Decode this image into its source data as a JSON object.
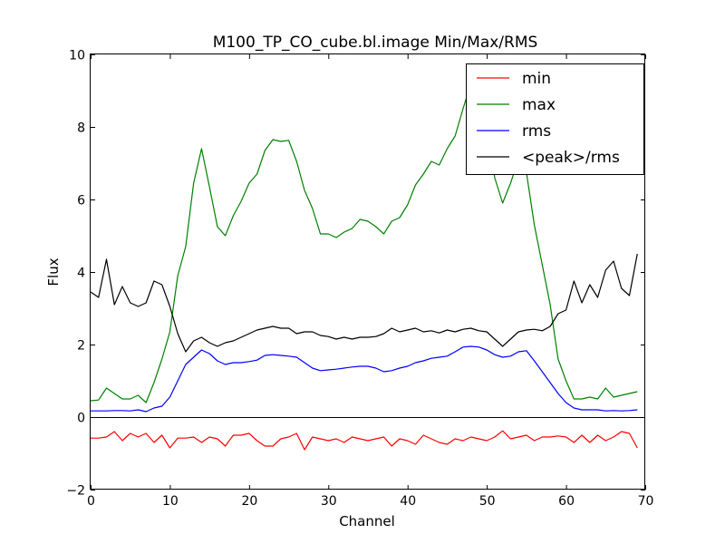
{
  "chart_data": {
    "type": "line",
    "title": "M100_TP_CO_cube.bl.image  Min/Max/RMS",
    "xlabel": "Channel",
    "ylabel": "Flux",
    "xlim": [
      0,
      70
    ],
    "ylim": [
      -2,
      10
    ],
    "xticks": [
      0,
      10,
      20,
      30,
      40,
      50,
      60,
      70
    ],
    "yticks": [
      -2,
      0,
      2,
      4,
      6,
      8,
      10
    ],
    "xtick_labels": [
      "0",
      "10",
      "20",
      "30",
      "40",
      "50",
      "60",
      "70"
    ],
    "ytick_labels": [
      "−2",
      "0",
      "2",
      "4",
      "6",
      "8",
      "10"
    ],
    "grid": false,
    "legend_position": "top-right",
    "zero_line": true,
    "x": [
      0,
      1,
      2,
      3,
      4,
      5,
      6,
      7,
      8,
      9,
      10,
      11,
      12,
      13,
      14,
      15,
      16,
      17,
      18,
      19,
      20,
      21,
      22,
      23,
      24,
      25,
      26,
      27,
      28,
      29,
      30,
      31,
      32,
      33,
      34,
      35,
      36,
      37,
      38,
      39,
      40,
      41,
      42,
      43,
      44,
      45,
      46,
      47,
      48,
      49,
      50,
      51,
      52,
      53,
      54,
      55,
      56,
      57,
      58,
      59,
      60,
      61,
      62,
      63,
      64,
      65,
      66,
      67,
      68,
      69
    ],
    "series": [
      {
        "name": "min",
        "color": "#ff0000",
        "values": [
          -0.58,
          -0.58,
          -0.55,
          -0.4,
          -0.65,
          -0.45,
          -0.55,
          -0.45,
          -0.7,
          -0.5,
          -0.85,
          -0.58,
          -0.58,
          -0.55,
          -0.7,
          -0.55,
          -0.6,
          -0.8,
          -0.5,
          -0.5,
          -0.45,
          -0.65,
          -0.8,
          -0.8,
          -0.6,
          -0.55,
          -0.45,
          -0.9,
          -0.55,
          -0.6,
          -0.65,
          -0.6,
          -0.7,
          -0.55,
          -0.6,
          -0.65,
          -0.6,
          -0.55,
          -0.8,
          -0.6,
          -0.65,
          -0.75,
          -0.5,
          -0.6,
          -0.7,
          -0.75,
          -0.6,
          -0.65,
          -0.55,
          -0.6,
          -0.65,
          -0.55,
          -0.38,
          -0.6,
          -0.55,
          -0.5,
          -0.65,
          -0.55,
          -0.55,
          -0.52,
          -0.55,
          -0.7,
          -0.5,
          -0.7,
          -0.5,
          -0.65,
          -0.55,
          -0.4,
          -0.45,
          -0.85
        ]
      },
      {
        "name": "max",
        "color": "#008000",
        "values": [
          0.45,
          0.47,
          0.8,
          0.65,
          0.5,
          0.5,
          0.6,
          0.4,
          0.95,
          1.6,
          2.35,
          3.9,
          4.7,
          6.45,
          7.4,
          6.35,
          5.25,
          5.0,
          5.55,
          5.95,
          6.45,
          6.7,
          7.35,
          7.65,
          7.6,
          7.63,
          7.05,
          6.25,
          5.75,
          5.05,
          5.05,
          4.95,
          5.1,
          5.2,
          5.45,
          5.4,
          5.25,
          5.05,
          5.4,
          5.5,
          5.85,
          6.4,
          6.7,
          7.05,
          6.95,
          7.4,
          7.75,
          8.5,
          9.2,
          9.0,
          8.0,
          6.6,
          5.9,
          6.45,
          7.1,
          6.75,
          5.3,
          4.2,
          3.1,
          1.6,
          1.0,
          0.5,
          0.5,
          0.55,
          0.5,
          0.8,
          0.55,
          0.6,
          0.65,
          0.7
        ]
      },
      {
        "name": "rms",
        "color": "#0000ff",
        "values": [
          0.17,
          0.17,
          0.17,
          0.18,
          0.18,
          0.17,
          0.2,
          0.15,
          0.25,
          0.3,
          0.55,
          1.0,
          1.45,
          1.65,
          1.85,
          1.75,
          1.55,
          1.45,
          1.5,
          1.5,
          1.53,
          1.57,
          1.7,
          1.72,
          1.7,
          1.68,
          1.65,
          1.5,
          1.35,
          1.28,
          1.3,
          1.32,
          1.35,
          1.38,
          1.4,
          1.4,
          1.35,
          1.25,
          1.28,
          1.35,
          1.4,
          1.5,
          1.55,
          1.62,
          1.65,
          1.68,
          1.8,
          1.93,
          1.95,
          1.93,
          1.85,
          1.72,
          1.65,
          1.68,
          1.8,
          1.83,
          1.55,
          1.25,
          0.95,
          0.65,
          0.4,
          0.25,
          0.2,
          0.2,
          0.2,
          0.17,
          0.18,
          0.17,
          0.18,
          0.2
        ]
      },
      {
        "name": "<peak>/rms",
        "color": "#000000",
        "values": [
          3.45,
          3.3,
          4.35,
          3.1,
          3.6,
          3.15,
          3.05,
          3.15,
          3.75,
          3.65,
          3.05,
          2.3,
          1.8,
          2.1,
          2.2,
          2.05,
          1.95,
          2.05,
          2.1,
          2.2,
          2.3,
          2.4,
          2.45,
          2.5,
          2.45,
          2.45,
          2.3,
          2.35,
          2.35,
          2.25,
          2.22,
          2.15,
          2.2,
          2.15,
          2.2,
          2.2,
          2.22,
          2.3,
          2.45,
          2.35,
          2.4,
          2.45,
          2.35,
          2.38,
          2.32,
          2.4,
          2.35,
          2.42,
          2.45,
          2.38,
          2.35,
          2.15,
          1.95,
          2.15,
          2.35,
          2.4,
          2.42,
          2.38,
          2.5,
          2.85,
          2.95,
          3.75,
          3.15,
          3.65,
          3.3,
          4.05,
          4.3,
          3.55,
          3.35,
          4.5
        ]
      }
    ]
  }
}
